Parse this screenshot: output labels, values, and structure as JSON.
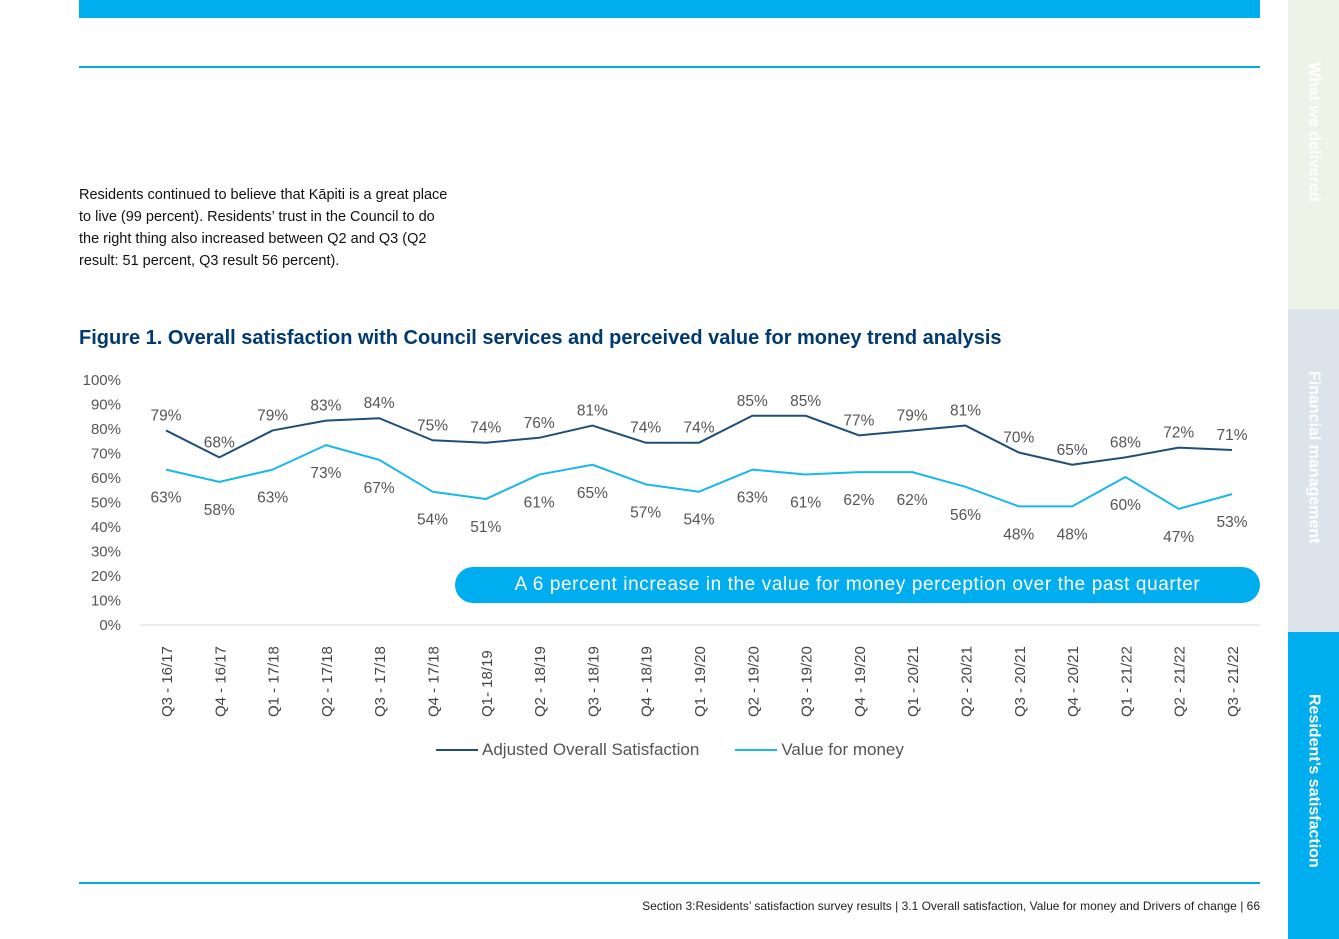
{
  "intro_text": "Residents continued to believe that Kāpiti is a great place to live (99 percent). Residents’ trust in the Council to do the right thing also increased between Q2 and Q3 (Q2 result: 51 percent, Q3 result 56 percent).",
  "figure_title": "Figure 1. Overall satisfaction with Council services and perceived value for money trend analysis",
  "callout": "A 6 percent increase in the value for money perception over the past quarter",
  "footer": "Section 3:Residents’ satisfaction survey results  |  3.1 Overall satisfaction, Value for money and Drivers of change  |  66",
  "side_tabs": [
    {
      "label": "What we delivered",
      "active": false
    },
    {
      "label": "Financial management",
      "active": false
    },
    {
      "label": "Resident’s satisfaction",
      "active": true
    }
  ],
  "colors": {
    "accent": "#00aeef",
    "navy": "#003a70",
    "series_1": "#1f4e79",
    "series_2": "#1ab7ea"
  },
  "chart_data": {
    "type": "line",
    "title": "Figure 1. Overall satisfaction with Council services and perceived value for money trend analysis",
    "categories": [
      "Q3 - 16/17",
      "Q4 - 16/17",
      "Q1 - 17/18",
      "Q2 - 17/18",
      "Q3 - 17/18",
      "Q4 - 17/18",
      "Q1- 18/19",
      "Q2 - 18/19",
      "Q3 - 18/19",
      "Q4 - 18/19",
      "Q1 - 19/20",
      "Q2 - 19/20",
      "Q3 - 19/20",
      "Q4 - 19/20",
      "Q1 - 20/21",
      "Q2 - 20/21",
      "Q3 - 20/21",
      "Q4 - 20/21",
      "Q1 - 21/22",
      "Q2 - 21/22",
      "Q3 - 21/22"
    ],
    "series": [
      {
        "name": "Adjusted Overall Satisfaction",
        "color": "#1f4e79",
        "values": [
          79,
          68,
          79,
          83,
          84,
          75,
          74,
          76,
          81,
          74,
          74,
          85,
          85,
          77,
          79,
          81,
          70,
          65,
          68,
          72,
          71
        ]
      },
      {
        "name": "Value for money",
        "color": "#1ab7ea",
        "values": [
          63,
          58,
          63,
          73,
          67,
          54,
          51,
          61,
          65,
          57,
          54,
          63,
          61,
          62,
          62,
          56,
          48,
          48,
          60,
          47,
          53
        ]
      }
    ],
    "y_ticks": [
      "0%",
      "10%",
      "20%",
      "30%",
      "40%",
      "50%",
      "60%",
      "70%",
      "80%",
      "90%",
      "100%"
    ],
    "ylim": [
      0,
      100
    ],
    "value_suffix": "%",
    "grid": false,
    "legend": "bottom-center"
  }
}
